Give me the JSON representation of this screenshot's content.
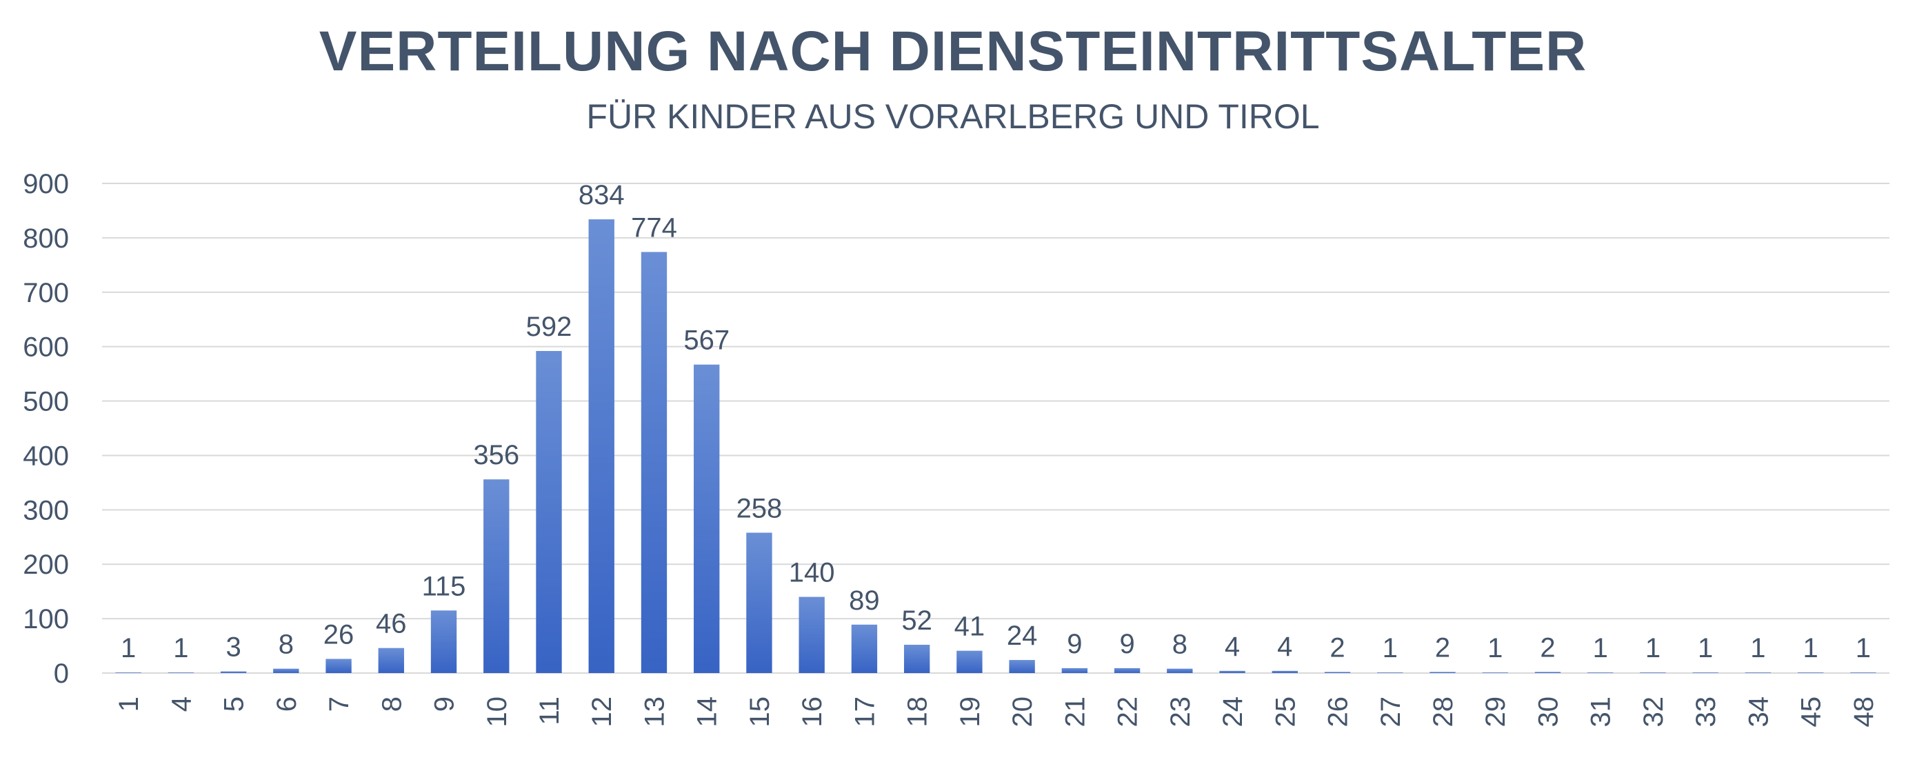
{
  "chart_data": {
    "type": "bar",
    "title": "VERTEILUNG NACH DIENSTEINTRITTSALTER",
    "subtitle": "FÜR KINDER AUS VORARLBERG UND TIROL",
    "xlabel": "",
    "ylabel": "",
    "categories": [
      "1",
      "4",
      "5",
      "6",
      "7",
      "8",
      "9",
      "10",
      "11",
      "12",
      "13",
      "14",
      "15",
      "16",
      "17",
      "18",
      "19",
      "20",
      "21",
      "22",
      "23",
      "24",
      "25",
      "26",
      "27",
      "28",
      "29",
      "30",
      "31",
      "32",
      "33",
      "34",
      "45",
      "48"
    ],
    "values": [
      1,
      1,
      3,
      8,
      26,
      46,
      115,
      356,
      592,
      834,
      774,
      567,
      258,
      140,
      89,
      52,
      41,
      24,
      9,
      9,
      8,
      4,
      4,
      2,
      1,
      2,
      1,
      2,
      1,
      1,
      1,
      1,
      1,
      1
    ],
    "ylim": [
      0,
      900
    ],
    "yticks": [
      0,
      100,
      200,
      300,
      400,
      500,
      600,
      700,
      800,
      900
    ],
    "grid": true,
    "legend": "none",
    "bar_color_top": "#6a8fd6",
    "bar_color_bottom": "#3763c4",
    "text_color": "#44546a",
    "grid_color": "#d9d9d9"
  }
}
